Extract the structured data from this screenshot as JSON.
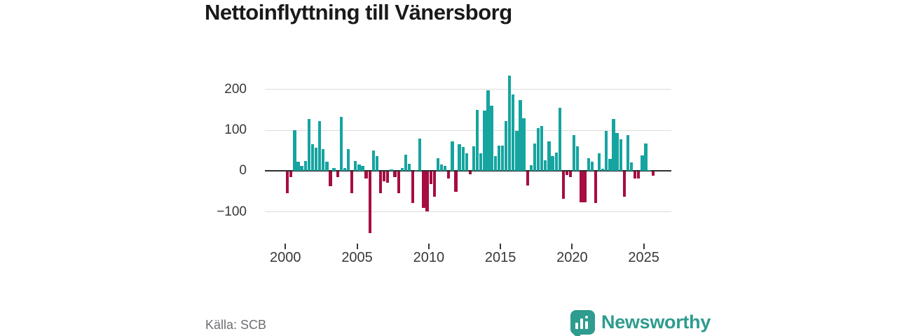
{
  "title": "Nettoinflyttning till Vänersborg",
  "source": "Källa: SCB",
  "logo": {
    "text": "Newsworthy",
    "color": "#2e9c8e",
    "icon": "bar-chart-speech-bubble"
  },
  "colors": {
    "positive": "#16a4a0",
    "negative": "#a60d42",
    "gridline": "#dcdcdc",
    "axis": "#2e2e2e",
    "text": "#383838"
  },
  "chart_data": {
    "type": "bar",
    "title": "Nettoinflyttning till Vänersborg",
    "xlabel": "",
    "ylabel": "",
    "period": "quarterly",
    "start": "2000-Q1",
    "end": "2025-Q3",
    "year_ticks": [
      2000,
      2005,
      2010,
      2015,
      2020,
      2025
    ],
    "y_ticks": [
      200,
      100,
      0,
      -100
    ],
    "ylim": [
      -160,
      250
    ],
    "grid": "horizontal",
    "legend": "none",
    "values": [
      -52,
      -13,
      100,
      23,
      12,
      25,
      128,
      65,
      57,
      122,
      53,
      22,
      -35,
      8,
      -13,
      132,
      8,
      53,
      -52,
      25,
      16,
      12,
      -16,
      -150,
      51,
      37,
      -52,
      -24,
      -27,
      4,
      -13,
      -53,
      8,
      40,
      18,
      -77,
      2,
      80,
      -89,
      -97,
      -30,
      -62,
      31,
      16,
      12,
      -16,
      73,
      -50,
      65,
      59,
      44,
      -7,
      60,
      150,
      44,
      149,
      198,
      160,
      36,
      63,
      63,
      122,
      234,
      187,
      99,
      174,
      130,
      -34,
      15,
      68,
      106,
      110,
      26,
      72,
      37,
      46,
      156,
      -66,
      -8,
      -13,
      88,
      61,
      -75,
      -75,
      32,
      22,
      -77,
      44,
      6,
      98,
      29,
      128,
      94,
      77,
      -62,
      88,
      21,
      -17,
      -17,
      38,
      67,
      2,
      -9
    ]
  }
}
